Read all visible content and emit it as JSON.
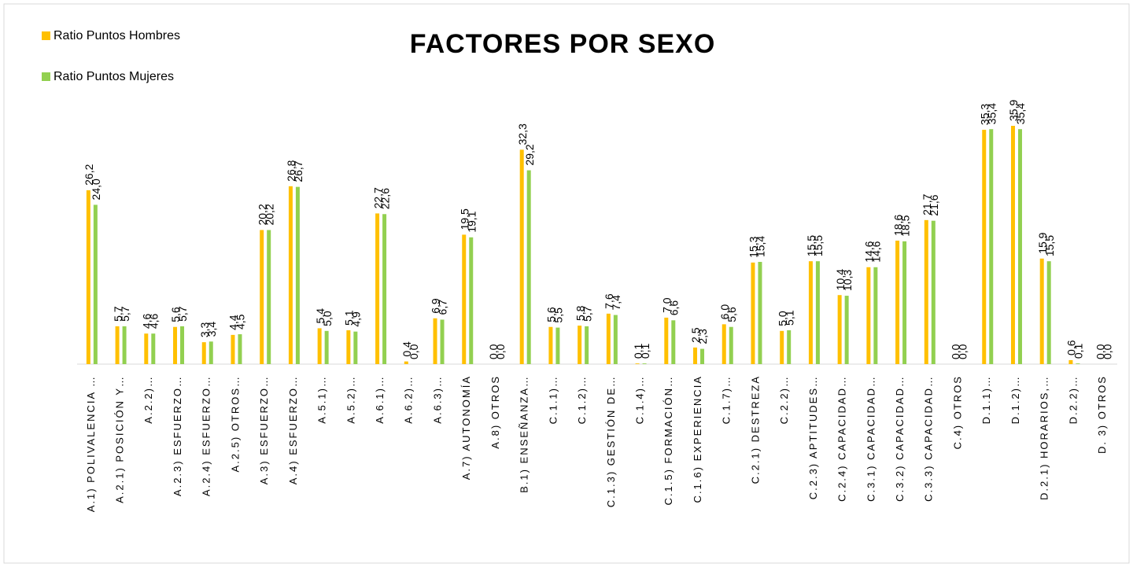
{
  "chart_data": {
    "type": "bar",
    "title": "FACTORES POR SEXO",
    "categories": [
      "A.1) POLIVALENCIA …",
      "A.2.1) POSICIÓN Y…",
      "A.2.2)…",
      "A.2.3) ESFUERZO…",
      "A.2.4) ESFUERZO…",
      "A.2.5) OTROS…",
      "A.3) ESFUERZO…",
      "A.4) ESFUERZO…",
      "A.5.1)…",
      "A.5.2)…",
      "A.6.1)…",
      "A.6.2)…",
      "A.6.3)…",
      "A.7) AUTONOMÍA",
      "A.8) OTROS",
      "B.1) ENSEÑANZA…",
      "C.1.1)…",
      "C.1.2)…",
      "C.1.3) GESTIÓN DE…",
      "C.1.4)…",
      "C.1.5) FORMACIÓN…",
      "C.1.6) EXPERIENCIA",
      "C.1.7)…",
      "C.2.1) DESTREZA",
      "C.2.2)…",
      "C.2.3) APTITUDES…",
      "C.2.4) CAPACIDAD…",
      "C.3.1) CAPACIDAD…",
      "C.3.2) CAPACIDAD…",
      "C.3.3) CAPACIDAD…",
      "C.4) OTROS",
      "D.1.1)…",
      "D.1.2)…",
      "D.2.1) HORARIOS,…",
      "D.2.2)…",
      "D. 3) OTROS"
    ],
    "series": [
      {
        "name": "Ratio Puntos Hombres",
        "color": "#ffc000",
        "values": [
          26.2,
          5.7,
          4.6,
          5.6,
          3.3,
          4.4,
          20.2,
          26.8,
          5.4,
          5.1,
          22.7,
          0.4,
          6.9,
          19.5,
          0.0,
          32.3,
          5.6,
          5.8,
          7.6,
          0.1,
          7.0,
          2.5,
          6.0,
          15.3,
          5.0,
          15.5,
          10.4,
          14.6,
          18.6,
          21.7,
          0.0,
          35.3,
          35.9,
          15.9,
          0.6,
          0.0
        ],
        "value_labels": [
          "26,2",
          "5,7",
          "4,6",
          "5,6",
          "3,3",
          "4,4",
          "20,2",
          "26,8",
          "5,4",
          "5,1",
          "22,7",
          "0,4",
          "6,9",
          "19,5",
          "0,0",
          "32,3",
          "5,6",
          "5,8",
          "7,6",
          "0,1",
          "7,0",
          "2,5",
          "6,0",
          "15,3",
          "5,0",
          "15,5",
          "10,4",
          "14,6",
          "18,6",
          "21,7",
          "0,0",
          "35,3",
          "35,9",
          "15,9",
          "0,6",
          "0,0"
        ]
      },
      {
        "name": "Ratio Puntos Mujeres",
        "color": "#92d050",
        "values": [
          24.0,
          5.7,
          4.6,
          5.7,
          3.4,
          4.5,
          20.2,
          26.7,
          5.0,
          4.9,
          22.6,
          0.0,
          6.7,
          19.1,
          0.0,
          29.2,
          5.5,
          5.7,
          7.4,
          0.1,
          6.6,
          2.3,
          5.6,
          15.4,
          5.1,
          15.5,
          10.3,
          14.6,
          18.5,
          21.6,
          0.0,
          35.4,
          35.4,
          15.5,
          0.1,
          0.0
        ],
        "value_labels": [
          "24,0",
          "5,7",
          "4,6",
          "5,7",
          "3,4",
          "4,5",
          "20,2",
          "26,7",
          "5,0",
          "4,9",
          "22,6",
          "0,0",
          "6,7",
          "19,1",
          "0,0",
          "29,2",
          "5,5",
          "5,7",
          "7,4",
          "0,1",
          "6,6",
          "2,3",
          "5,6",
          "15,4",
          "5,1",
          "15,5",
          "10,3",
          "14,6",
          "18,5",
          "21,6",
          "0,0",
          "35,4",
          "35,4",
          "15,5",
          "0,1",
          "0,0"
        ]
      }
    ],
    "ylim": [
      0,
      40
    ]
  }
}
